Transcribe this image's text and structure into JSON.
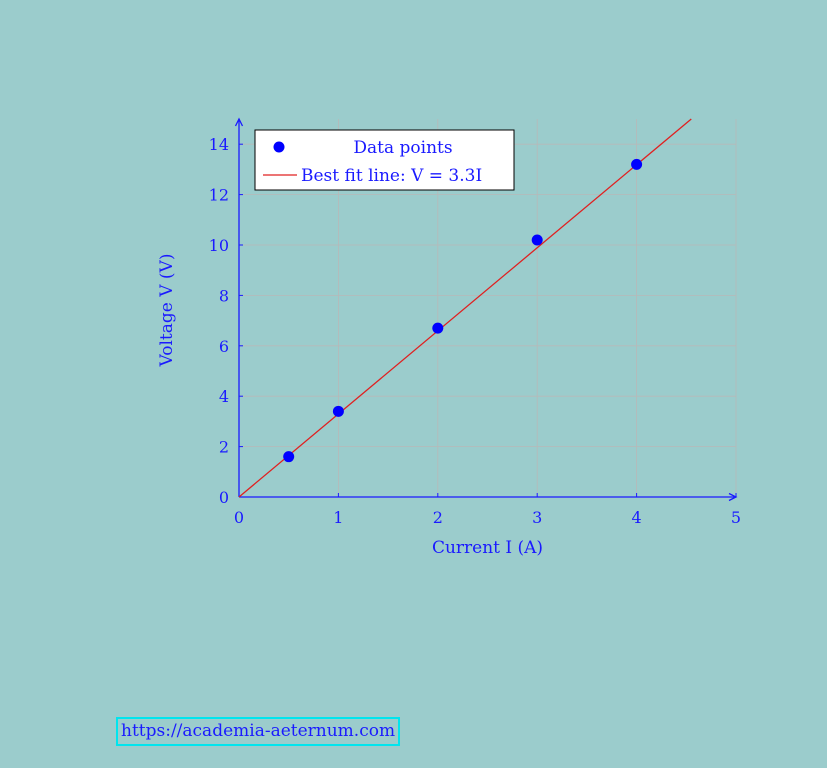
{
  "chart_data": {
    "type": "scatter",
    "xlabel": "Current I (A)",
    "ylabel": "Voltage V (V)",
    "xlim": [
      0,
      5
    ],
    "ylim": [
      0,
      15
    ],
    "xticks": [
      0,
      1,
      2,
      3,
      4,
      5
    ],
    "yticks": [
      0,
      2,
      4,
      6,
      8,
      10,
      12,
      14
    ],
    "grid": true,
    "legend_position": "top-left",
    "series": [
      {
        "name": "Data points",
        "kind": "scatter",
        "color": "#0000ff",
        "x": [
          0.5,
          1,
          2,
          3,
          4
        ],
        "y": [
          1.6,
          3.4,
          6.7,
          10.2,
          13.2
        ]
      },
      {
        "name": "Best fit line: V = 3.3I",
        "kind": "line",
        "color": "#e02020",
        "x": [
          0,
          4.55
        ],
        "y": [
          0,
          15
        ]
      }
    ]
  },
  "footer": {
    "url": "https://academia-aeternum.com"
  }
}
